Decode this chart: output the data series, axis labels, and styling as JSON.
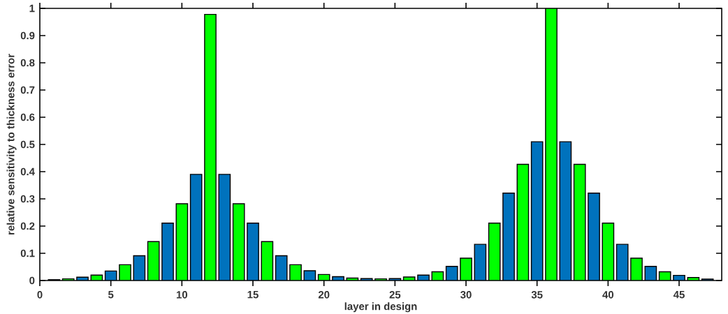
{
  "chart_data": {
    "type": "bar",
    "xlabel": "layer in design",
    "ylabel": "relative sensitivity to thickness error",
    "x": [
      1,
      2,
      3,
      4,
      5,
      6,
      7,
      8,
      9,
      10,
      11,
      12,
      13,
      14,
      15,
      16,
      17,
      18,
      19,
      20,
      21,
      22,
      23,
      24,
      25,
      26,
      27,
      28,
      29,
      30,
      31,
      32,
      33,
      34,
      35,
      36,
      37,
      38,
      39,
      40,
      41,
      42,
      43,
      44,
      45,
      46,
      47
    ],
    "values": [
      0.003,
      0.006,
      0.012,
      0.02,
      0.035,
      0.058,
      0.091,
      0.143,
      0.211,
      0.282,
      0.39,
      0.978,
      0.39,
      0.282,
      0.211,
      0.143,
      0.091,
      0.058,
      0.036,
      0.022,
      0.014,
      0.009,
      0.007,
      0.006,
      0.007,
      0.013,
      0.02,
      0.032,
      0.052,
      0.082,
      0.133,
      0.211,
      0.321,
      0.427,
      0.51,
      1.0,
      0.51,
      0.427,
      0.321,
      0.211,
      0.133,
      0.082,
      0.052,
      0.032,
      0.019,
      0.011,
      0.005
    ],
    "colors": [
      "#0072bd",
      "#00ff00",
      "#0072bd",
      "#00ff00",
      "#0072bd",
      "#00ff00",
      "#0072bd",
      "#00ff00",
      "#0072bd",
      "#00ff00",
      "#0072bd",
      "#00ff00",
      "#0072bd",
      "#00ff00",
      "#0072bd",
      "#00ff00",
      "#0072bd",
      "#00ff00",
      "#0072bd",
      "#00ff00",
      "#0072bd",
      "#00ff00",
      "#0072bd",
      "#00ff00",
      "#0072bd",
      "#00ff00",
      "#0072bd",
      "#00ff00",
      "#0072bd",
      "#00ff00",
      "#0072bd",
      "#00ff00",
      "#0072bd",
      "#00ff00",
      "#0072bd",
      "#00ff00",
      "#0072bd",
      "#00ff00",
      "#0072bd",
      "#00ff00",
      "#0072bd",
      "#00ff00",
      "#0072bd",
      "#00ff00",
      "#0072bd",
      "#00ff00",
      "#0072bd"
    ],
    "xlim": [
      0,
      48
    ],
    "ylim": [
      0,
      1
    ],
    "xticks": [
      0,
      5,
      10,
      15,
      20,
      25,
      30,
      35,
      40,
      45
    ],
    "yticks": [
      0,
      0.1,
      0.2,
      0.3,
      0.4,
      0.5,
      0.6,
      0.7,
      0.8,
      0.9,
      1
    ],
    "grid": false
  }
}
